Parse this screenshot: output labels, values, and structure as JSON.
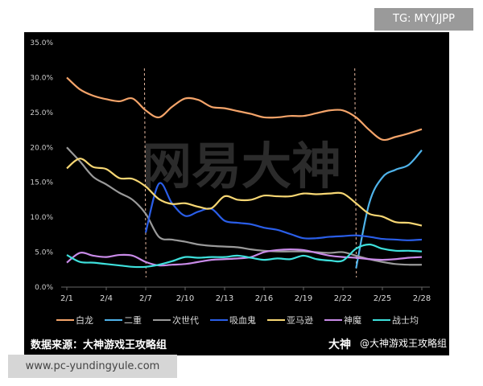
{
  "tg_label": "TG: MYYJJPP",
  "site_label": "www.pc-yundingyule.com",
  "watermark": "网易大神",
  "source_text": "数据来源：大神游戏王攻略组",
  "credit_logo": "大神",
  "credit_text": "@大神游戏王攻略组",
  "chart_data": {
    "type": "line",
    "title": "",
    "xlabel": "",
    "ylabel": "",
    "x": [
      "2/1",
      "2/2",
      "2/3",
      "2/4",
      "2/5",
      "2/6",
      "2/7",
      "2/8",
      "2/9",
      "2/10",
      "2/11",
      "2/12",
      "2/13",
      "2/14",
      "2/15",
      "2/16",
      "2/17",
      "2/18",
      "2/19",
      "2/20",
      "2/21",
      "2/22",
      "2/23",
      "2/24",
      "2/25",
      "2/26",
      "2/27",
      "2/28"
    ],
    "x_ticks": [
      "2/1",
      "2/4",
      "2/7",
      "2/10",
      "2/13",
      "2/16",
      "2/19",
      "2/22",
      "2/25",
      "2/28"
    ],
    "y_ticks": [
      "0.0%",
      "5.0%",
      "10.0%",
      "15.0%",
      "20.0%",
      "25.0%",
      "30.0%",
      "35.0%"
    ],
    "ylim": [
      0,
      35
    ],
    "grid": false,
    "legend_position": "bottom",
    "vertical_markers": [
      "2/7",
      "2/23"
    ],
    "series": [
      {
        "name": "白龙",
        "color": "#f4a46a",
        "values": [
          30,
          28.3,
          27.4,
          26.9,
          26.6,
          27.0,
          25.3,
          24.3,
          25.8,
          27.0,
          26.8,
          25.8,
          25.6,
          25.2,
          24.8,
          24.3,
          24.3,
          24.5,
          24.5,
          24.9,
          25.3,
          25.3,
          24.3,
          22.5,
          21.1,
          21.5,
          22.0,
          22.6
        ]
      },
      {
        "name": "二重",
        "color": "#4fb3ea",
        "values": [
          null,
          null,
          null,
          null,
          null,
          null,
          null,
          null,
          null,
          null,
          null,
          null,
          null,
          null,
          null,
          null,
          null,
          null,
          null,
          null,
          null,
          null,
          2.7,
          12,
          15.7,
          16.8,
          17.5,
          19.6
        ]
      },
      {
        "name": "次世代",
        "color": "#9a9a9a",
        "values": [
          20,
          18,
          15.8,
          14.7,
          13.5,
          12.5,
          10.5,
          7.2,
          6.8,
          6.5,
          6.1,
          5.9,
          5.8,
          5.7,
          5.4,
          5.2,
          5.1,
          5.1,
          5.1,
          5.0,
          4.9,
          5.0,
          4.5,
          4.0,
          3.6,
          3.3,
          3.2,
          3.2
        ]
      },
      {
        "name": "吸血鬼",
        "color": "#2a5ee8",
        "values": [
          null,
          null,
          null,
          null,
          null,
          null,
          7.8,
          14.8,
          12.0,
          10.2,
          10.8,
          11.2,
          9.5,
          9.2,
          9.0,
          8.5,
          8.2,
          7.6,
          7.0,
          7.0,
          7.2,
          7.3,
          7.4,
          7.2,
          6.9,
          6.8,
          6.7,
          6.8
        ]
      },
      {
        "name": "亚马逊",
        "color": "#f7d774",
        "values": [
          17,
          18.4,
          17.2,
          16.9,
          15.6,
          15.5,
          14.4,
          12.6,
          11.9,
          12.0,
          11.5,
          11.3,
          13.0,
          12.5,
          12.5,
          13.1,
          13.0,
          13.0,
          13.4,
          13.3,
          13.4,
          13.4,
          12.0,
          10.5,
          10.1,
          9.3,
          9.2,
          8.8
        ]
      },
      {
        "name": "神魔",
        "color": "#c98be8",
        "values": [
          3.5,
          4.9,
          4.5,
          4.3,
          4.6,
          4.5,
          3.6,
          3.1,
          3.2,
          3.3,
          3.6,
          3.9,
          4.0,
          4.1,
          4.3,
          5.0,
          5.3,
          5.4,
          5.3,
          4.9,
          4.5,
          4.3,
          4.2,
          4.0,
          3.9,
          4.0,
          4.2,
          4.3
        ]
      },
      {
        "name": "战士均",
        "color": "#3ee0dc",
        "values": [
          4.6,
          3.6,
          3.5,
          3.3,
          3.1,
          2.9,
          2.9,
          3.2,
          3.7,
          4.3,
          4.2,
          4.3,
          4.3,
          4.5,
          4.2,
          3.9,
          4.1,
          4.0,
          4.5,
          4.0,
          3.8,
          3.8,
          5.5,
          6.1,
          5.5,
          5.2,
          5.2,
          5.1
        ]
      }
    ]
  }
}
